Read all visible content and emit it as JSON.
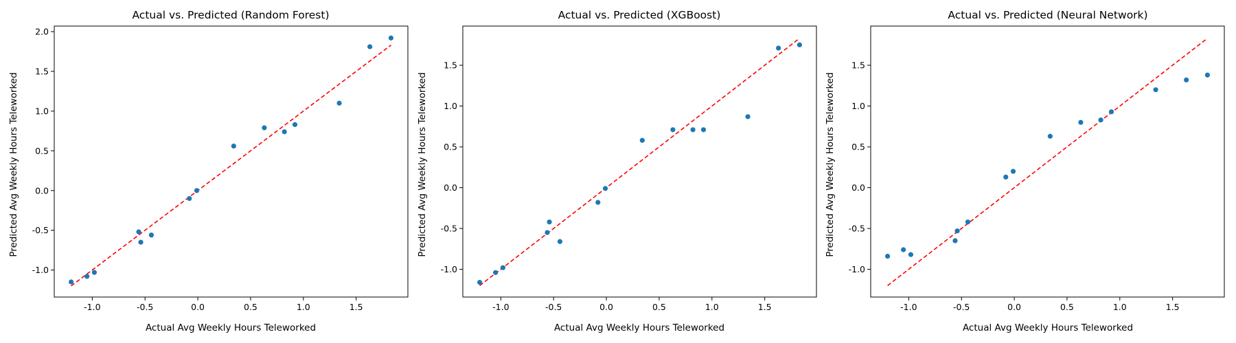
{
  "colors": {
    "points": "#1f77b4",
    "reference_line": "#ff0000",
    "axes": "#000000",
    "background": "#ffffff"
  },
  "chart_data": [
    {
      "type": "scatter",
      "title": "Actual vs. Predicted (Random Forest)",
      "xlabel": "Actual Avg Weekly Hours Teleworked",
      "ylabel": "Predicted Avg Weekly Hours Teleworked",
      "xlim": [
        -1.36,
        1.99
      ],
      "ylim": [
        -1.34,
        2.07
      ],
      "xticks": [
        "-1.0",
        "-0.5",
        "0.0",
        "0.5",
        "1.0",
        "1.5"
      ],
      "xtick_values": [
        -1.0,
        -0.5,
        0.0,
        0.5,
        1.0,
        1.5
      ],
      "yticks": [
        "-1.0",
        "-0.5",
        "0.0",
        "0.5",
        "1.0",
        "1.5",
        "2.0"
      ],
      "ytick_values": [
        -1.0,
        -0.5,
        0.0,
        0.5,
        1.0,
        1.5,
        2.0
      ],
      "grid": false,
      "reference_line": {
        "style": "dashed",
        "from": [
          -1.2,
          -1.2
        ],
        "to": [
          1.83,
          1.83
        ]
      },
      "points": [
        {
          "x": -1.2,
          "y": -1.15
        },
        {
          "x": -1.05,
          "y": -1.08
        },
        {
          "x": -0.98,
          "y": -1.03
        },
        {
          "x": -0.56,
          "y": -0.52
        },
        {
          "x": -0.54,
          "y": -0.65
        },
        {
          "x": -0.44,
          "y": -0.56
        },
        {
          "x": -0.08,
          "y": -0.1
        },
        {
          "x": -0.01,
          "y": 0.0
        },
        {
          "x": 0.34,
          "y": 0.56
        },
        {
          "x": 0.63,
          "y": 0.79
        },
        {
          "x": 0.82,
          "y": 0.74
        },
        {
          "x": 0.92,
          "y": 0.83
        },
        {
          "x": 1.34,
          "y": 1.1
        },
        {
          "x": 1.63,
          "y": 1.81
        },
        {
          "x": 1.83,
          "y": 1.92
        }
      ]
    },
    {
      "type": "scatter",
      "title": "Actual vs. Predicted (XGBoost)",
      "xlabel": "Actual Avg Weekly Hours Teleworked",
      "ylabel": "Predicted Avg Weekly Hours Teleworked",
      "xlim": [
        -1.36,
        1.99
      ],
      "ylim": [
        -1.34,
        1.98
      ],
      "xticks": [
        "-1.0",
        "-0.5",
        "0.0",
        "0.5",
        "1.0",
        "1.5"
      ],
      "xtick_values": [
        -1.0,
        -0.5,
        0.0,
        0.5,
        1.0,
        1.5
      ],
      "yticks": [
        "-1.0",
        "-0.5",
        "0.0",
        "0.5",
        "1.0",
        "1.5"
      ],
      "ytick_values": [
        -1.0,
        -0.5,
        0.0,
        0.5,
        1.0,
        1.5
      ],
      "grid": false,
      "reference_line": {
        "style": "dashed",
        "from": [
          -1.2,
          -1.2
        ],
        "to": [
          1.83,
          1.83
        ]
      },
      "points": [
        {
          "x": -1.2,
          "y": -1.16
        },
        {
          "x": -1.05,
          "y": -1.04
        },
        {
          "x": -0.98,
          "y": -0.98
        },
        {
          "x": -0.56,
          "y": -0.55
        },
        {
          "x": -0.54,
          "y": -0.42
        },
        {
          "x": -0.44,
          "y": -0.66
        },
        {
          "x": -0.08,
          "y": -0.18
        },
        {
          "x": -0.01,
          "y": -0.01
        },
        {
          "x": 0.34,
          "y": 0.58
        },
        {
          "x": 0.63,
          "y": 0.71
        },
        {
          "x": 0.82,
          "y": 0.71
        },
        {
          "x": 0.92,
          "y": 0.71
        },
        {
          "x": 1.34,
          "y": 0.87
        },
        {
          "x": 1.63,
          "y": 1.71
        },
        {
          "x": 1.83,
          "y": 1.75
        }
      ]
    },
    {
      "type": "scatter",
      "title": "Actual vs. Predicted (Neural Network)",
      "xlabel": "Actual Avg Weekly Hours Teleworked",
      "ylabel": "Predicted Avg Weekly Hours Teleworked",
      "xlim": [
        -1.36,
        1.99
      ],
      "ylim": [
        -1.34,
        1.98
      ],
      "xticks": [
        "-1.0",
        "-0.5",
        "0.0",
        "0.5",
        "1.0",
        "1.5"
      ],
      "xtick_values": [
        -1.0,
        -0.5,
        0.0,
        0.5,
        1.0,
        1.5
      ],
      "yticks": [
        "-1.0",
        "-0.5",
        "0.0",
        "0.5",
        "1.0",
        "1.5"
      ],
      "ytick_values": [
        -1.0,
        -0.5,
        0.0,
        0.5,
        1.0,
        1.5
      ],
      "grid": false,
      "reference_line": {
        "style": "dashed",
        "from": [
          -1.2,
          -1.2
        ],
        "to": [
          1.83,
          1.83
        ]
      },
      "points": [
        {
          "x": -1.2,
          "y": -0.84
        },
        {
          "x": -1.05,
          "y": -0.76
        },
        {
          "x": -0.98,
          "y": -0.82
        },
        {
          "x": -0.56,
          "y": -0.65
        },
        {
          "x": -0.54,
          "y": -0.53
        },
        {
          "x": -0.44,
          "y": -0.42
        },
        {
          "x": -0.08,
          "y": 0.13
        },
        {
          "x": -0.01,
          "y": 0.2
        },
        {
          "x": 0.34,
          "y": 0.63
        },
        {
          "x": 0.63,
          "y": 0.8
        },
        {
          "x": 0.82,
          "y": 0.83
        },
        {
          "x": 0.92,
          "y": 0.93
        },
        {
          "x": 1.34,
          "y": 1.2
        },
        {
          "x": 1.63,
          "y": 1.32
        },
        {
          "x": 1.83,
          "y": 1.38
        }
      ]
    }
  ]
}
